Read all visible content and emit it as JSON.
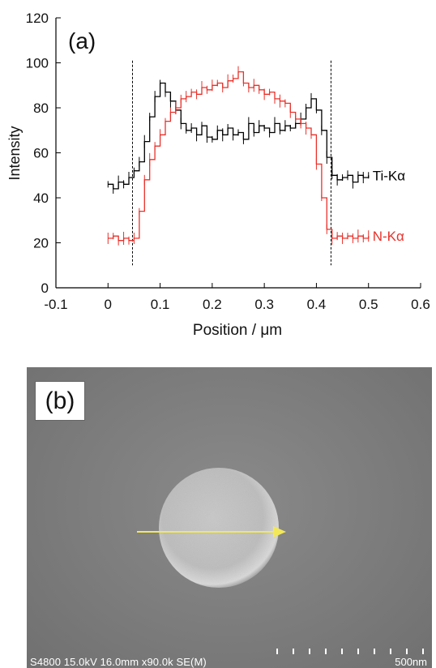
{
  "panel_a": {
    "label": "(a)",
    "chart_data": {
      "type": "line",
      "xlabel": "Position / μm",
      "ylabel": "Intensity",
      "xlim": [
        -0.1,
        0.6
      ],
      "ylim": [
        0,
        120
      ],
      "x_ticks": [
        -0.1,
        0,
        0.1,
        0.2,
        0.3,
        0.4,
        0.5,
        0.6
      ],
      "x_tick_labels": [
        "-0.1",
        "0",
        "0.1",
        "0.2",
        "0.3",
        "0.4",
        "0.5",
        "0.6"
      ],
      "y_ticks": [
        0,
        20,
        40,
        60,
        80,
        100,
        120
      ],
      "y_tick_labels": [
        "0",
        "20",
        "40",
        "60",
        "80",
        "100",
        "120"
      ],
      "grid": false,
      "vertical_markers": [
        0.047,
        0.428
      ],
      "series": [
        {
          "name": "Ti-Kα",
          "color": "#000000",
          "x": [
            0,
            0.01,
            0.02,
            0.03,
            0.04,
            0.05,
            0.06,
            0.07,
            0.08,
            0.09,
            0.1,
            0.11,
            0.12,
            0.13,
            0.14,
            0.15,
            0.16,
            0.17,
            0.18,
            0.19,
            0.2,
            0.21,
            0.22,
            0.23,
            0.24,
            0.25,
            0.26,
            0.27,
            0.28,
            0.29,
            0.3,
            0.31,
            0.32,
            0.33,
            0.34,
            0.35,
            0.36,
            0.37,
            0.38,
            0.39,
            0.4,
            0.41,
            0.42,
            0.43,
            0.44,
            0.45,
            0.46,
            0.47,
            0.48,
            0.49,
            0.5
          ],
          "values": [
            46,
            44,
            47,
            46,
            49,
            52,
            56,
            65,
            76,
            85,
            91,
            87,
            83,
            79,
            73,
            70,
            71,
            68,
            72,
            67,
            66,
            70,
            68,
            71,
            68,
            69,
            66,
            73,
            69,
            72,
            71,
            69,
            73,
            70,
            72,
            71,
            73,
            75,
            80,
            84,
            79,
            70,
            58,
            50,
            48,
            49,
            50,
            47,
            50,
            49,
            50
          ]
        },
        {
          "name": "N-Kα",
          "color": "#e8312a",
          "x": [
            0,
            0.01,
            0.02,
            0.03,
            0.04,
            0.05,
            0.06,
            0.07,
            0.08,
            0.09,
            0.1,
            0.11,
            0.12,
            0.13,
            0.14,
            0.15,
            0.16,
            0.17,
            0.18,
            0.19,
            0.2,
            0.21,
            0.22,
            0.23,
            0.24,
            0.25,
            0.26,
            0.27,
            0.28,
            0.29,
            0.3,
            0.31,
            0.32,
            0.33,
            0.34,
            0.35,
            0.36,
            0.37,
            0.38,
            0.39,
            0.4,
            0.41,
            0.42,
            0.43,
            0.44,
            0.45,
            0.46,
            0.47,
            0.48,
            0.49,
            0.5
          ],
          "values": [
            22,
            23,
            21,
            22,
            21,
            22,
            34,
            48,
            57,
            63,
            68,
            74,
            78,
            80,
            84,
            85,
            87,
            86,
            89,
            88,
            90,
            91,
            89,
            92,
            93,
            96,
            91,
            89,
            90,
            88,
            86,
            87,
            84,
            83,
            82,
            78,
            75,
            73,
            71,
            68,
            55,
            40,
            26,
            22,
            23,
            22,
            23,
            22,
            23,
            22,
            23
          ]
        }
      ]
    }
  },
  "panel_b": {
    "label": "(b)",
    "info": "S4800 15.0kV 16.0mm x90.0k SE(M)",
    "scale_label": "500nm",
    "arrow_color": "#f2e85a"
  }
}
